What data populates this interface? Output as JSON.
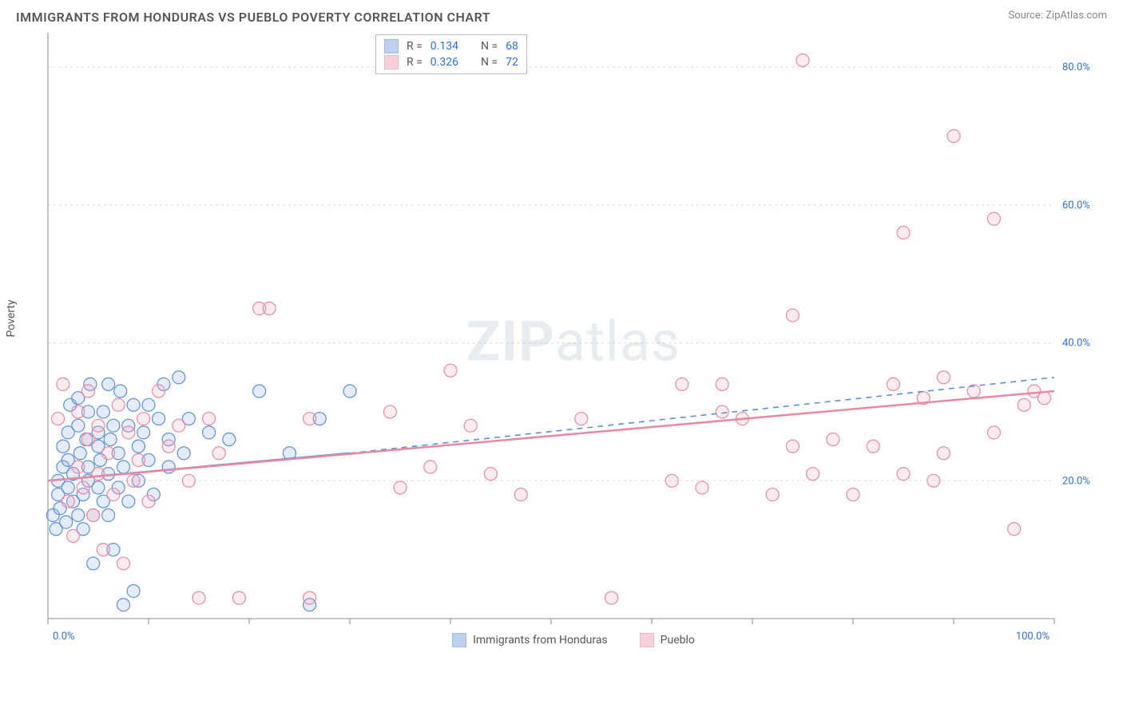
{
  "title": "IMMIGRANTS FROM HONDURAS VS PUEBLO POVERTY CORRELATION CHART",
  "source": "Source: ZipAtlas.com",
  "watermark_bold": "ZIP",
  "watermark_rest": "atlas",
  "ylabel": "Poverty",
  "chart": {
    "type": "scatter",
    "background_color": "#ffffff",
    "grid_color": "#d9d9d9",
    "axis_color": "#888888",
    "tick_label_color": "#2e6fd9",
    "xlim": [
      0,
      100
    ],
    "ylim": [
      0,
      85
    ],
    "xtick_labels": [
      {
        "v": 0,
        "label": "0.0%"
      },
      {
        "v": 100,
        "label": "100.0%"
      }
    ],
    "xticks_minor": [
      10,
      20,
      30,
      40,
      50,
      60,
      70,
      80,
      90
    ],
    "ytick_labels": [
      {
        "v": 20,
        "label": "20.0%"
      },
      {
        "v": 40,
        "label": "40.0%"
      },
      {
        "v": 60,
        "label": "60.0%"
      },
      {
        "v": 80,
        "label": "80.0%"
      }
    ],
    "marker_radius": 8,
    "marker_stroke_width": 1.2,
    "marker_fill_opacity": 0.25,
    "series": [
      {
        "id": "honduras",
        "label": "Immigrants from Honduras",
        "color_stroke": "#5b8fd6",
        "color_fill": "#8fb4e3",
        "R": 0.134,
        "N": 68,
        "trend": {
          "x1": 0,
          "y1": 20,
          "x2": 30,
          "y2": 24,
          "dash_extend_to": 100,
          "y_extend": 35,
          "width": 2.5
        },
        "points": [
          [
            0.5,
            15
          ],
          [
            0.8,
            13
          ],
          [
            1,
            18
          ],
          [
            1,
            20
          ],
          [
            1.2,
            16
          ],
          [
            1.5,
            22
          ],
          [
            1.5,
            25
          ],
          [
            1.8,
            14
          ],
          [
            2,
            27
          ],
          [
            2,
            19
          ],
          [
            2,
            23
          ],
          [
            2.2,
            31
          ],
          [
            2.5,
            17
          ],
          [
            2.5,
            21
          ],
          [
            3,
            15
          ],
          [
            3,
            28
          ],
          [
            3,
            32
          ],
          [
            3.2,
            24
          ],
          [
            3.5,
            18
          ],
          [
            3.5,
            13
          ],
          [
            3.8,
            26
          ],
          [
            4,
            30
          ],
          [
            4,
            20
          ],
          [
            4,
            22
          ],
          [
            4.2,
            34
          ],
          [
            4.5,
            15
          ],
          [
            4.5,
            8
          ],
          [
            5,
            27
          ],
          [
            5,
            25
          ],
          [
            5,
            19
          ],
          [
            5.2,
            23
          ],
          [
            5.5,
            30
          ],
          [
            5.5,
            17
          ],
          [
            6,
            21
          ],
          [
            6,
            15
          ],
          [
            6,
            34
          ],
          [
            6.2,
            26
          ],
          [
            6.5,
            28
          ],
          [
            6.5,
            10
          ],
          [
            7,
            24
          ],
          [
            7,
            19
          ],
          [
            7.2,
            33
          ],
          [
            7.5,
            22
          ],
          [
            7.5,
            2
          ],
          [
            8,
            28
          ],
          [
            8,
            17
          ],
          [
            8.5,
            31
          ],
          [
            8.5,
            4
          ],
          [
            9,
            25
          ],
          [
            9,
            20
          ],
          [
            9.5,
            27
          ],
          [
            10,
            23
          ],
          [
            10,
            31
          ],
          [
            10.5,
            18
          ],
          [
            11,
            29
          ],
          [
            11.5,
            34
          ],
          [
            12,
            26
          ],
          [
            12,
            22
          ],
          [
            13,
            35
          ],
          [
            13.5,
            24
          ],
          [
            14,
            29
          ],
          [
            16,
            27
          ],
          [
            18,
            26
          ],
          [
            21,
            33
          ],
          [
            24,
            24
          ],
          [
            26,
            2
          ],
          [
            27,
            29
          ],
          [
            30,
            33
          ]
        ]
      },
      {
        "id": "pueblo",
        "label": "Pueblo",
        "color_stroke": "#e68aa2",
        "color_fill": "#f2b0c1",
        "R": 0.326,
        "N": 72,
        "trend": {
          "x1": 0,
          "y1": 20,
          "x2": 100,
          "y2": 33,
          "width": 2.5
        },
        "points": [
          [
            1,
            29
          ],
          [
            1.5,
            34
          ],
          [
            2,
            17
          ],
          [
            2.5,
            12
          ],
          [
            3,
            30
          ],
          [
            3,
            22
          ],
          [
            3.5,
            19
          ],
          [
            4,
            26
          ],
          [
            4,
            33
          ],
          [
            4.5,
            15
          ],
          [
            5,
            21
          ],
          [
            5,
            28
          ],
          [
            5.5,
            10
          ],
          [
            6,
            24
          ],
          [
            6.5,
            18
          ],
          [
            7,
            31
          ],
          [
            7.5,
            8
          ],
          [
            8,
            27
          ],
          [
            8.5,
            20
          ],
          [
            9,
            23
          ],
          [
            9.5,
            29
          ],
          [
            10,
            17
          ],
          [
            11,
            33
          ],
          [
            12,
            25
          ],
          [
            13,
            28
          ],
          [
            14,
            20
          ],
          [
            15,
            3
          ],
          [
            16,
            29
          ],
          [
            17,
            24
          ],
          [
            19,
            3
          ],
          [
            21,
            45
          ],
          [
            22,
            45
          ],
          [
            26,
            29
          ],
          [
            26,
            3
          ],
          [
            34,
            30
          ],
          [
            35,
            19
          ],
          [
            38,
            22
          ],
          [
            40,
            36
          ],
          [
            42,
            28
          ],
          [
            44,
            21
          ],
          [
            47,
            18
          ],
          [
            53,
            29
          ],
          [
            56,
            3
          ],
          [
            62,
            20
          ],
          [
            63,
            34
          ],
          [
            65,
            19
          ],
          [
            67,
            30
          ],
          [
            67,
            34
          ],
          [
            69,
            29
          ],
          [
            72,
            18
          ],
          [
            74,
            44
          ],
          [
            74,
            25
          ],
          [
            75,
            81
          ],
          [
            76,
            21
          ],
          [
            78,
            26
          ],
          [
            80,
            18
          ],
          [
            82,
            25
          ],
          [
            84,
            34
          ],
          [
            85,
            21
          ],
          [
            85,
            56
          ],
          [
            87,
            32
          ],
          [
            88,
            20
          ],
          [
            89,
            24
          ],
          [
            89,
            35
          ],
          [
            90,
            70
          ],
          [
            92,
            33
          ],
          [
            94,
            27
          ],
          [
            94,
            58
          ],
          [
            96,
            13
          ],
          [
            97,
            31
          ],
          [
            98,
            33
          ],
          [
            99,
            32
          ]
        ]
      }
    ]
  },
  "legend_top": {
    "r_label": "R =",
    "n_label": "N ="
  }
}
